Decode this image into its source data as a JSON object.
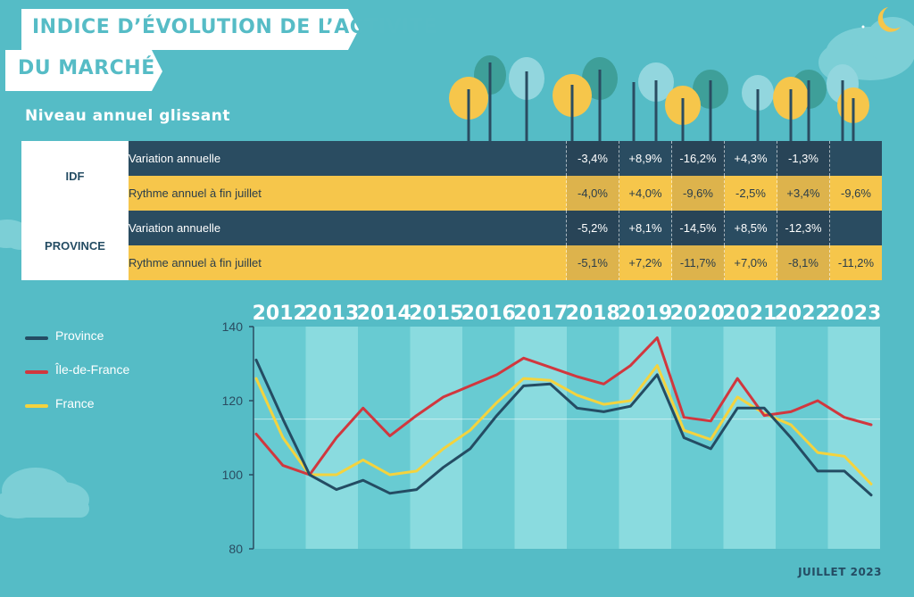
{
  "title": {
    "line1": "INDICE D’ÉVOLUTION DE L’ACTIVITÉ",
    "line2": "DU MARCHÉ"
  },
  "subtitle": "Niveau annuel glissant",
  "table": {
    "regions": [
      {
        "name": "IDF",
        "rows": [
          {
            "label": "Variation annuelle",
            "values": [
              "-3,4%",
              "+8,9%",
              "-16,2%",
              "+4,3%",
              "-1,3%",
              ""
            ]
          },
          {
            "label": "Rythme annuel à fin juillet",
            "values": [
              "-4,0%",
              "+4,0%",
              "-9,6%",
              "-2,5%",
              "+3,4%",
              "-9,6%"
            ]
          }
        ]
      },
      {
        "name": "PROVINCE",
        "rows": [
          {
            "label": "Variation annuelle",
            "values": [
              "-5,2%",
              "+8,1%",
              "-14,5%",
              "+8,5%",
              "-12,3%",
              ""
            ]
          },
          {
            "label": "Rythme annuel à fin juillet",
            "values": [
              "-5,1%",
              "+7,2%",
              "-11,7%",
              "+7,0%",
              "-8,1%",
              "-11,2%"
            ]
          }
        ]
      }
    ]
  },
  "footer": "JUILLET 2023",
  "colors": {
    "background": "#55bcc6",
    "province": "#244c63",
    "idf": "#d1373e",
    "france": "#f4d33e",
    "panel": "#68cbd2",
    "panel_alt": "#8adbdf"
  },
  "chart_data": {
    "type": "line",
    "x_label_years": [
      "2012",
      "2013",
      "2014",
      "2015",
      "2016",
      "2017",
      "2018",
      "2019",
      "2020",
      "2021",
      "2022",
      "2023"
    ],
    "x": [
      "2012-01",
      "2012-07",
      "2013-01",
      "2013-07",
      "2014-01",
      "2014-07",
      "2015-01",
      "2015-07",
      "2016-01",
      "2016-07",
      "2017-01",
      "2017-07",
      "2018-01",
      "2018-07",
      "2019-01",
      "2019-07",
      "2020-01",
      "2020-07",
      "2021-01",
      "2021-07",
      "2022-01",
      "2022-07",
      "2023-01",
      "2023-07"
    ],
    "ylim": [
      80,
      140
    ],
    "yticks": [
      80,
      100,
      120,
      140
    ],
    "series": [
      {
        "name": "Province",
        "values": [
          131,
          115,
          100,
          96,
          98.5,
          95,
          96,
          102,
          107,
          116,
          124,
          124.5,
          118,
          117,
          118.5,
          127,
          110,
          107,
          118,
          118,
          110,
          101,
          101,
          94.5
        ]
      },
      {
        "name": "Île-de-France",
        "values": [
          111,
          102.5,
          100,
          110,
          118,
          110.5,
          116,
          121,
          124,
          127,
          131.5,
          129,
          126.5,
          124.5,
          129.5,
          137,
          115.5,
          114.5,
          126,
          116,
          117,
          120,
          115.5,
          113.5
        ]
      },
      {
        "name": "France",
        "values": [
          126,
          110,
          100,
          100,
          104,
          100,
          101,
          107,
          112,
          119.5,
          126,
          125.5,
          121.5,
          119,
          120,
          129.5,
          112,
          109.5,
          121,
          116.5,
          113.5,
          106,
          105,
          97.5
        ]
      }
    ]
  },
  "legend": [
    "Province",
    "Île-de-France",
    "France"
  ]
}
